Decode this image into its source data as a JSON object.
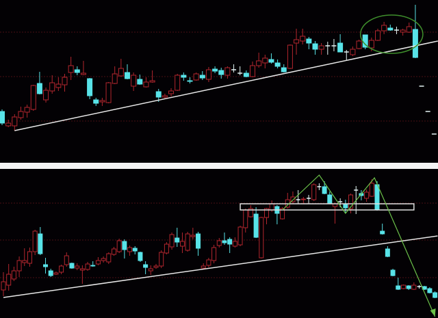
{
  "colors": {
    "background": "#000000",
    "up": "#b3262e",
    "down": "#58e3e8",
    "cross": "#e6f6f6",
    "grid": "#4a1014",
    "trendline": "#e8e8e8",
    "highlight": "#3f8f2c",
    "pattern": "#6cc24a",
    "box": "#e0e0e0"
  },
  "chart_data": [
    {
      "type": "candlestick",
      "title": "",
      "grid": true,
      "gridlines": [
        193,
        128,
        63
      ],
      "ohlc": [
        [
          77,
          80,
          57,
          60
        ],
        [
          56,
          65,
          54,
          60
        ],
        [
          56,
          73,
          49,
          69
        ],
        [
          68,
          84,
          65,
          77
        ],
        [
          76,
          87,
          68,
          83
        ],
        [
          80,
          116,
          78,
          115
        ],
        [
          118,
          135,
          102,
          103
        ],
        [
          94,
          112,
          90,
          108
        ],
        [
          107,
          130,
          103,
          119
        ],
        [
          112,
          127,
          107,
          117
        ],
        [
          116,
          132,
          106,
          127
        ],
        [
          134,
          157,
          123,
          144
        ],
        [
          138,
          143,
          130,
          134
        ],
        [
          131,
          151,
          130,
          133
        ],
        [
          125,
          126,
          95,
          100
        ],
        [
          94,
          97,
          85,
          89
        ],
        [
          91,
          97,
          85,
          93
        ],
        [
          90,
          120,
          89,
          119
        ],
        [
          118,
          143,
          117,
          132
        ],
        [
          129,
          154,
          128,
          140
        ],
        [
          134,
          146,
          124,
          125
        ],
        [
          114,
          134,
          107,
          130
        ],
        [
          124,
          131,
          116,
          117
        ],
        [
          113,
          127,
          112,
          120
        ],
        [
          120,
          137,
          119,
          122
        ],
        [
          106,
          110,
          91,
          98
        ],
        [
          98,
          103,
          95,
          100
        ],
        [
          103,
          111,
          99,
          107
        ],
        [
          108,
          132,
          107,
          130
        ],
        [
          130,
          134,
          122,
          127
        ],
        [
          122,
          127,
          118,
          121
        ],
        [
          123,
          134,
          122,
          132
        ],
        [
          130,
          136,
          123,
          126
        ],
        [
          124,
          142,
          120,
          138
        ],
        [
          139,
          143,
          133,
          136
        ],
        [
          137,
          141,
          125,
          131
        ],
        [
          130,
          143,
          125,
          141
        ],
        [
          138,
          146,
          134,
          138
        ],
        [
          133,
          143,
          130,
          133
        ],
        [
          133,
          137,
          127,
          128
        ],
        [
          128,
          150,
          127,
          144
        ],
        [
          144,
          163,
          141,
          151
        ],
        [
          148,
          160,
          140,
          155
        ],
        [
          153,
          162,
          147,
          149
        ],
        [
          148,
          153,
          140,
          143
        ],
        [
          141,
          146,
          134,
          135
        ],
        [
          140,
          175,
          139,
          174
        ],
        [
          177,
          198,
          160,
          182
        ],
        [
          180,
          198,
          175,
          187
        ],
        [
          183,
          186,
          168,
          177
        ],
        [
          176,
          180,
          160,
          168
        ],
        [
          168,
          177,
          160,
          173
        ],
        [
          173,
          179,
          160,
          173
        ],
        [
          173,
          183,
          165,
          173
        ],
        [
          177,
          190,
          164,
          164
        ],
        [
          164,
          167,
          152,
          164
        ],
        [
          160,
          172,
          158,
          168
        ],
        [
          169,
          182,
          168,
          180
        ],
        [
          189,
          189,
          168,
          171
        ],
        [
          170,
          185,
          165,
          181
        ],
        [
          181,
          198,
          180,
          195
        ],
        [
          195,
          208,
          190,
          203
        ],
        [
          199,
          204,
          195,
          196
        ],
        [
          196,
          201,
          190,
          196
        ],
        [
          193,
          198,
          188,
          196
        ],
        [
          193,
          207,
          192,
          201
        ],
        [
          197,
          233,
          155,
          156
        ],
        [
          114,
          114,
          114,
          114
        ],
        [
          77,
          77,
          77,
          77
        ],
        [
          44,
          44,
          44,
          44
        ]
      ],
      "annotations": {
        "trendline": {
          "from": [
            3,
            49
          ],
          "to": [
            70.6,
            180
          ]
        },
        "highlight_ellipse": {
          "from_index": 59,
          "to_index": 67
        }
      }
    },
    {
      "type": "candlestick",
      "title": "",
      "grid": true,
      "gridlines": [
        168,
        114,
        59
      ],
      "ohlc": [
        [
          41,
          67,
          32,
          53
        ],
        [
          48,
          79,
          40,
          64
        ],
        [
          57,
          75,
          54,
          69
        ],
        [
          69,
          90,
          60,
          84
        ],
        [
          81,
          102,
          76,
          84
        ],
        [
          80,
          103,
          75,
          97
        ],
        [
          97,
          129,
          92,
          127
        ],
        [
          123,
          133,
          92,
          94
        ],
        [
          78,
          88,
          65,
          75
        ],
        [
          69,
          72,
          60,
          62
        ],
        [
          64,
          68,
          63,
          66
        ],
        [
          67,
          78,
          64,
          76
        ],
        [
          78,
          96,
          75,
          91
        ],
        [
          80,
          81,
          72,
          73
        ],
        [
          73,
          80,
          70,
          76
        ],
        [
          70,
          77,
          50,
          72
        ],
        [
          71,
          82,
          69,
          79
        ],
        [
          77,
          83,
          75,
          76
        ],
        [
          79,
          89,
          77,
          84
        ],
        [
          84,
          90,
          81,
          87
        ],
        [
          82,
          96,
          79,
          94
        ],
        [
          93,
          104,
          91,
          101
        ],
        [
          97,
          116,
          95,
          113
        ],
        [
          112,
          115,
          87,
          100
        ],
        [
          97,
          106,
          91,
          103
        ],
        [
          102,
          105,
          93,
          98
        ],
        [
          96,
          97,
          82,
          84
        ],
        [
          78,
          83,
          64,
          74
        ],
        [
          69,
          77,
          63,
          72
        ],
        [
          74,
          79,
          72,
          76
        ],
        [
          76,
          99,
          73,
          96
        ],
        [
          95,
          111,
          93,
          108
        ],
        [
          104,
          125,
          100,
          122
        ],
        [
          117,
          132,
          104,
          111
        ],
        [
          105,
          125,
          95,
          112
        ],
        [
          99,
          126,
          97,
          123
        ],
        [
          119,
          132,
          115,
          121
        ],
        [
          123,
          126,
          91,
          102
        ],
        [
          73,
          80,
          71,
          76
        ],
        [
          77,
          88,
          74,
          85
        ],
        [
          84,
          107,
          80,
          103
        ],
        [
          106,
          117,
          103,
          113
        ],
        [
          113,
          125,
          107,
          110
        ],
        [
          115,
          118,
          95,
          108
        ],
        [
          105,
          118,
          103,
          112
        ],
        [
          107,
          135,
          105,
          133
        ],
        [
          132,
          160,
          125,
          158
        ],
        [
          148,
          165,
          147,
          160
        ],
        [
          152,
          162,
          117,
          118
        ],
        [
          88,
          148,
          87,
          147
        ],
        [
          147,
          161,
          137,
          160
        ],
        [
          158,
          172,
          155,
          167
        ],
        [
          163,
          165,
          137,
          153
        ],
        [
          145,
          162,
          144,
          160
        ],
        [
          162,
          183,
          160,
          173
        ],
        [
          170,
          185,
          167,
          177
        ],
        [
          173,
          187,
          167,
          173
        ],
        [
          173,
          177,
          167,
          174
        ],
        [
          175,
          180,
          167,
          175
        ],
        [
          173,
          197,
          171,
          195
        ],
        [
          192,
          197,
          187,
          192
        ],
        [
          192,
          200,
          181,
          182
        ],
        [
          180,
          185,
          167,
          168
        ],
        [
          163,
          169,
          138,
          167
        ],
        [
          170,
          175,
          162,
          170
        ],
        [
          167,
          173,
          153,
          161
        ],
        [
          160,
          182,
          153,
          180
        ],
        [
          187,
          193,
          152,
          187
        ],
        [
          182,
          187,
          172,
          179
        ],
        [
          175,
          188,
          170,
          184
        ],
        [
          178,
          203,
          177,
          197
        ],
        [
          195,
          200,
          157,
          158
        ],
        [
          127,
          138,
          122,
          123
        ],
        [
          101,
          105,
          89,
          90
        ],
        [
          70,
          72,
          61,
          62
        ],
        [
          47,
          59,
          41,
          42
        ],
        [
          43,
          49,
          42,
          48
        ],
        [
          47,
          48,
          41,
          43
        ],
        [
          42,
          52,
          41,
          48
        ],
        [
          46,
          48,
          43,
          46
        ],
        [
          46,
          47,
          41,
          42
        ],
        [
          43,
          45,
          36,
          37
        ],
        [
          37,
          39,
          29,
          30
        ]
      ],
      "annotations": {
        "trendline": {
          "from": [
            1,
            30
          ],
          "to": [
            83.5,
            120
          ]
        },
        "resistance_box": {
          "from_index": 46,
          "to_index": 79,
          "low": 158,
          "high": 167
        },
        "pattern_zigzag": [
          [
            54,
            158
          ],
          [
            61,
            209
          ],
          [
            66,
            153
          ],
          [
            71.5,
            205
          ],
          [
            83,
            2
          ]
        ]
      }
    }
  ]
}
